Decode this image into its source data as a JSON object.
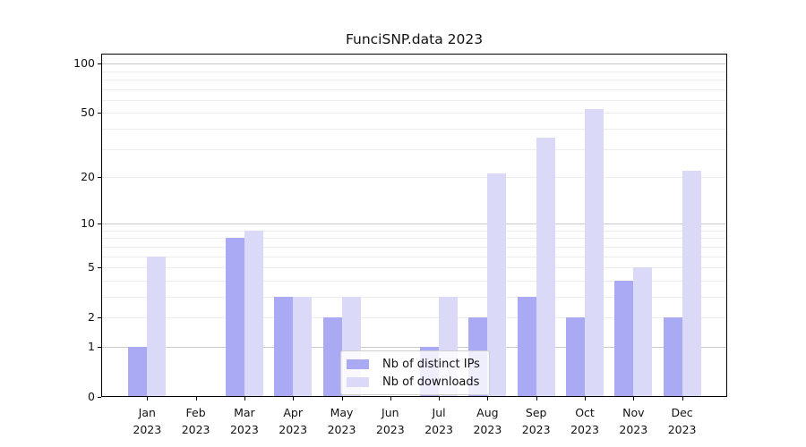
{
  "title": "FunciSNP.data 2023",
  "chart_data": {
    "type": "bar",
    "title": "FunciSNP.data 2023",
    "categories": [
      "Jan",
      "Feb",
      "Mar",
      "Apr",
      "May",
      "Jun",
      "Jul",
      "Aug",
      "Sep",
      "Oct",
      "Nov",
      "Dec"
    ],
    "x_year": "2023",
    "series": [
      {
        "name": "Nb of distinct IPs",
        "color": "#a9a9f4",
        "values": [
          1,
          0,
          8,
          3,
          2,
          0,
          1,
          2,
          3,
          2,
          4,
          2
        ]
      },
      {
        "name": "Nb of downloads",
        "color": "#dadaf8",
        "values": [
          6,
          0,
          9,
          3,
          3,
          0,
          3,
          21,
          35,
          53,
          5,
          22
        ]
      }
    ],
    "xlabel": "",
    "ylabel": "",
    "y_scale": "log1p",
    "ylim": [
      0,
      115
    ],
    "y_ticks": [
      0,
      1,
      2,
      5,
      10,
      20,
      50,
      100
    ],
    "minor_gridlines": [
      2,
      3,
      4,
      5,
      6,
      7,
      8,
      9,
      20,
      30,
      40,
      50,
      60,
      70,
      80,
      90
    ],
    "major_gridlines": [
      1,
      10,
      100
    ],
    "grid": true,
    "legend_position": "lower center",
    "colors": {
      "major_grid": "#c9c9c9",
      "minor_grid": "#ededed",
      "axis": "#000000",
      "background": "#ffffff"
    }
  }
}
